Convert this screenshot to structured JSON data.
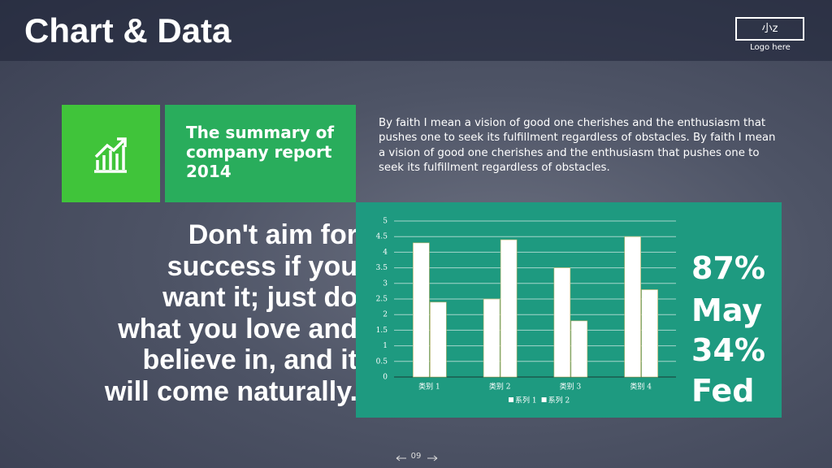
{
  "header": {
    "title": "Chart & Data",
    "logo": "小z",
    "logo_caption": "Logo here"
  },
  "summary": {
    "title": "The summary of company report 2014",
    "text": "By faith I mean a vision of good one cherishes and the enthusiasm that pushes one to seek its fulfillment regardless of obstacles. By faith I mean a vision of good one cherishes and the enthusiasm that pushes one to seek its fulfillment regardless of obstacles."
  },
  "quote": "Don't aim for success if you want it; just do what you love and believe in, and it will come naturally.",
  "stats": [
    "87%",
    "May",
    "34%",
    "Fed"
  ],
  "page_number": "09",
  "chart_data": {
    "type": "bar",
    "categories": [
      "类别 1",
      "类别 2",
      "类别 3",
      "类别 4"
    ],
    "series": [
      {
        "name": "系列 1",
        "color": "#ffffff",
        "values": [
          4.3,
          2.5,
          3.5,
          4.5
        ]
      },
      {
        "name": "系列 2",
        "color": "#ffffff",
        "values": [
          2.4,
          4.4,
          1.8,
          2.8
        ]
      }
    ],
    "ylim": [
      0,
      5
    ],
    "yticks": [
      0,
      0.5,
      1,
      1.5,
      2,
      2.5,
      3,
      3.5,
      4,
      4.5,
      5
    ],
    "grid": true,
    "legend": "bottom"
  }
}
